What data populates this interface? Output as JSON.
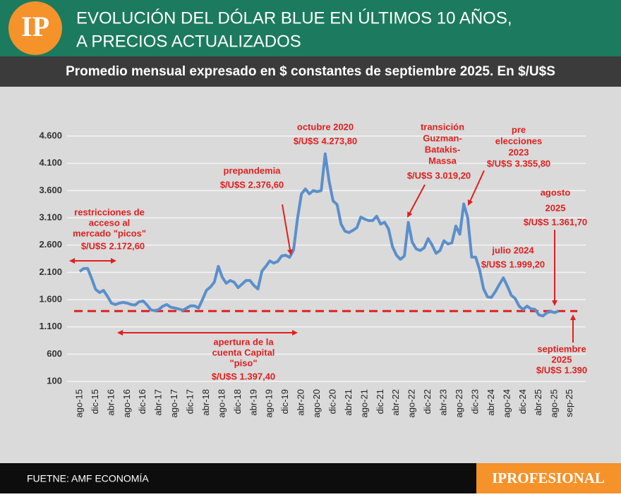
{
  "chart_data": {
    "type": "line",
    "logo": "IP",
    "title": [
      "EVOLUCIÓN DEL DÓLAR BLUE EN ÚLTIMOS 10 AÑOS,",
      "A PRECIOS ACTUALIZADOS"
    ],
    "subtitle": "Promedio mensual expresado en $ constantes de septiembre 2025. En $/U$S",
    "source": "FUETNE: AMF ECONOMÍA",
    "brand": "IPROFESIONAL",
    "color": "#5b8fcb",
    "grid": true,
    "ylim": [
      100,
      4800
    ],
    "yticks": [
      100,
      600,
      {
        "value": 1100,
        "label": "1.100"
      },
      {
        "value": 1600,
        "label": "1.600"
      },
      {
        "value": 2100,
        "label": "2.100"
      },
      {
        "value": 2600,
        "label": "2.600"
      },
      {
        "value": 3100,
        "label": "3.100"
      },
      {
        "value": 3600,
        "label": "3.600"
      },
      {
        "value": 4100,
        "label": "4.100"
      },
      {
        "value": 4600,
        "label": "4.600"
      }
    ],
    "reference_line": {
      "value": 1390,
      "color": "#e0201f"
    },
    "categories": [
      "ago-15",
      null,
      null,
      null,
      "dic-15",
      null,
      null,
      null,
      "abr-16",
      null,
      null,
      null,
      "ago-16",
      null,
      null,
      null,
      "dic-16",
      null,
      null,
      null,
      "abr-17",
      null,
      null,
      null,
      "ago-17",
      null,
      null,
      null,
      "dic-17",
      null,
      null,
      null,
      "abr-18",
      null,
      null,
      null,
      "ago-18",
      null,
      null,
      null,
      "dic-18",
      null,
      null,
      null,
      "abr-19",
      null,
      null,
      null,
      "ago-19",
      null,
      null,
      null,
      "dic-19",
      null,
      null,
      null,
      "abr-20",
      null,
      null,
      null,
      "ago-20",
      null,
      null,
      null,
      "dic-20",
      null,
      null,
      null,
      "abr-21",
      null,
      null,
      null,
      "ago-21",
      null,
      null,
      null,
      "dic-21",
      null,
      null,
      null,
      "abr-22",
      null,
      null,
      null,
      "ago-22",
      null,
      null,
      null,
      "dic-22",
      null,
      null,
      null,
      "abr-23",
      null,
      null,
      null,
      "ago-23",
      null,
      null,
      null,
      "dic-23",
      null,
      null,
      null,
      "abr-24",
      null,
      null,
      null,
      "ago-24",
      null,
      null,
      null,
      "dic-24",
      null,
      null,
      null,
      "abr-25",
      null,
      null,
      null,
      "ago-25",
      "sep-25"
    ],
    "values": [
      2117,
      2170,
      2172.6,
      1990,
      1790,
      1730,
      1770,
      1660,
      1535,
      1510,
      1535,
      1550,
      1535,
      1510,
      1500,
      1560,
      1575,
      1500,
      1410,
      1397.4,
      1420,
      1480,
      1510,
      1460,
      1445,
      1430,
      1405,
      1445,
      1485,
      1485,
      1445,
      1600,
      1770,
      1830,
      1920,
      2210,
      2010,
      1900,
      1950,
      1920,
      1820,
      1885,
      1950,
      1950,
      1860,
      1795,
      2120,
      2210,
      2310,
      2270,
      2300,
      2400,
      2415,
      2376.6,
      2505,
      3090,
      3540,
      3630,
      3540,
      3600,
      3580,
      3600,
      4273.8,
      3770,
      3410,
      3345,
      2985,
      2855,
      2830,
      2870,
      2920,
      3115,
      3075,
      3050,
      3050,
      3130,
      2985,
      3020,
      2895,
      2570,
      2415,
      2340,
      2400,
      3019.2,
      2650,
      2530,
      2500,
      2550,
      2720,
      2600,
      2450,
      2500,
      2680,
      2620,
      2640,
      2950,
      2800,
      3355.8,
      3100,
      2380,
      2380,
      2150,
      1800,
      1650,
      1640,
      1750,
      1880,
      1999.2,
      1850,
      1680,
      1620,
      1480,
      1420,
      1480,
      1430,
      1420,
      1320,
      1300,
      1360,
      1380,
      1361.7,
      1390
    ],
    "value_labels": [
      null,
      null,
      "$/U$S 2.172,60",
      null,
      null,
      null,
      null,
      null,
      null,
      null,
      null,
      null,
      null,
      null,
      null,
      null,
      null,
      null,
      null,
      "$/U$S 1.397,40",
      null,
      null,
      null,
      null,
      null,
      null,
      null,
      null,
      null,
      null,
      null,
      null,
      null,
      null,
      null,
      null,
      null,
      null,
      null,
      null,
      null,
      null,
      null,
      null,
      null,
      null,
      null,
      null,
      null,
      null,
      null,
      null,
      null,
      "$/U$S 2.376,60",
      null,
      null,
      null,
      null,
      null,
      null,
      null,
      null,
      "$/U$S 4.273,80",
      null,
      null,
      null,
      null,
      null,
      null,
      null,
      null,
      null,
      null,
      null,
      null,
      null,
      null,
      null,
      null,
      null,
      null,
      null,
      null,
      "$/U$S 3.019,20",
      null,
      null,
      null,
      null,
      null,
      null,
      null,
      null,
      null,
      null,
      null,
      null,
      null,
      "$/U$S 3.355,80",
      null,
      null,
      null,
      null,
      null,
      null,
      null,
      null,
      null,
      "$/U$S 1.999,20",
      null,
      null,
      null,
      null,
      null,
      null,
      null,
      null,
      null,
      null,
      null,
      null,
      "$/U$S 1.361,70",
      "$/U$S 1.390"
    ],
    "annotations": [
      {
        "text": [
          "restricciones de",
          "acceso al",
          "mercado \"picos\""
        ]
      },
      {
        "text": [
          "apertura de la",
          "cuenta Capital",
          "\"piso\""
        ]
      },
      {
        "text": [
          "prepandemia"
        ]
      },
      {
        "text": [
          "octubre 2020"
        ]
      },
      {
        "text": [
          "transición",
          "Guzman-",
          "Batakis-",
          "Massa"
        ]
      },
      {
        "text": [
          "pre",
          "elecciones",
          "2023"
        ]
      },
      {
        "text": [
          "agosto",
          "2025"
        ]
      },
      {
        "text": [
          "julio 2024"
        ]
      },
      {
        "text": [
          "septiembre",
          "2025"
        ]
      }
    ]
  }
}
